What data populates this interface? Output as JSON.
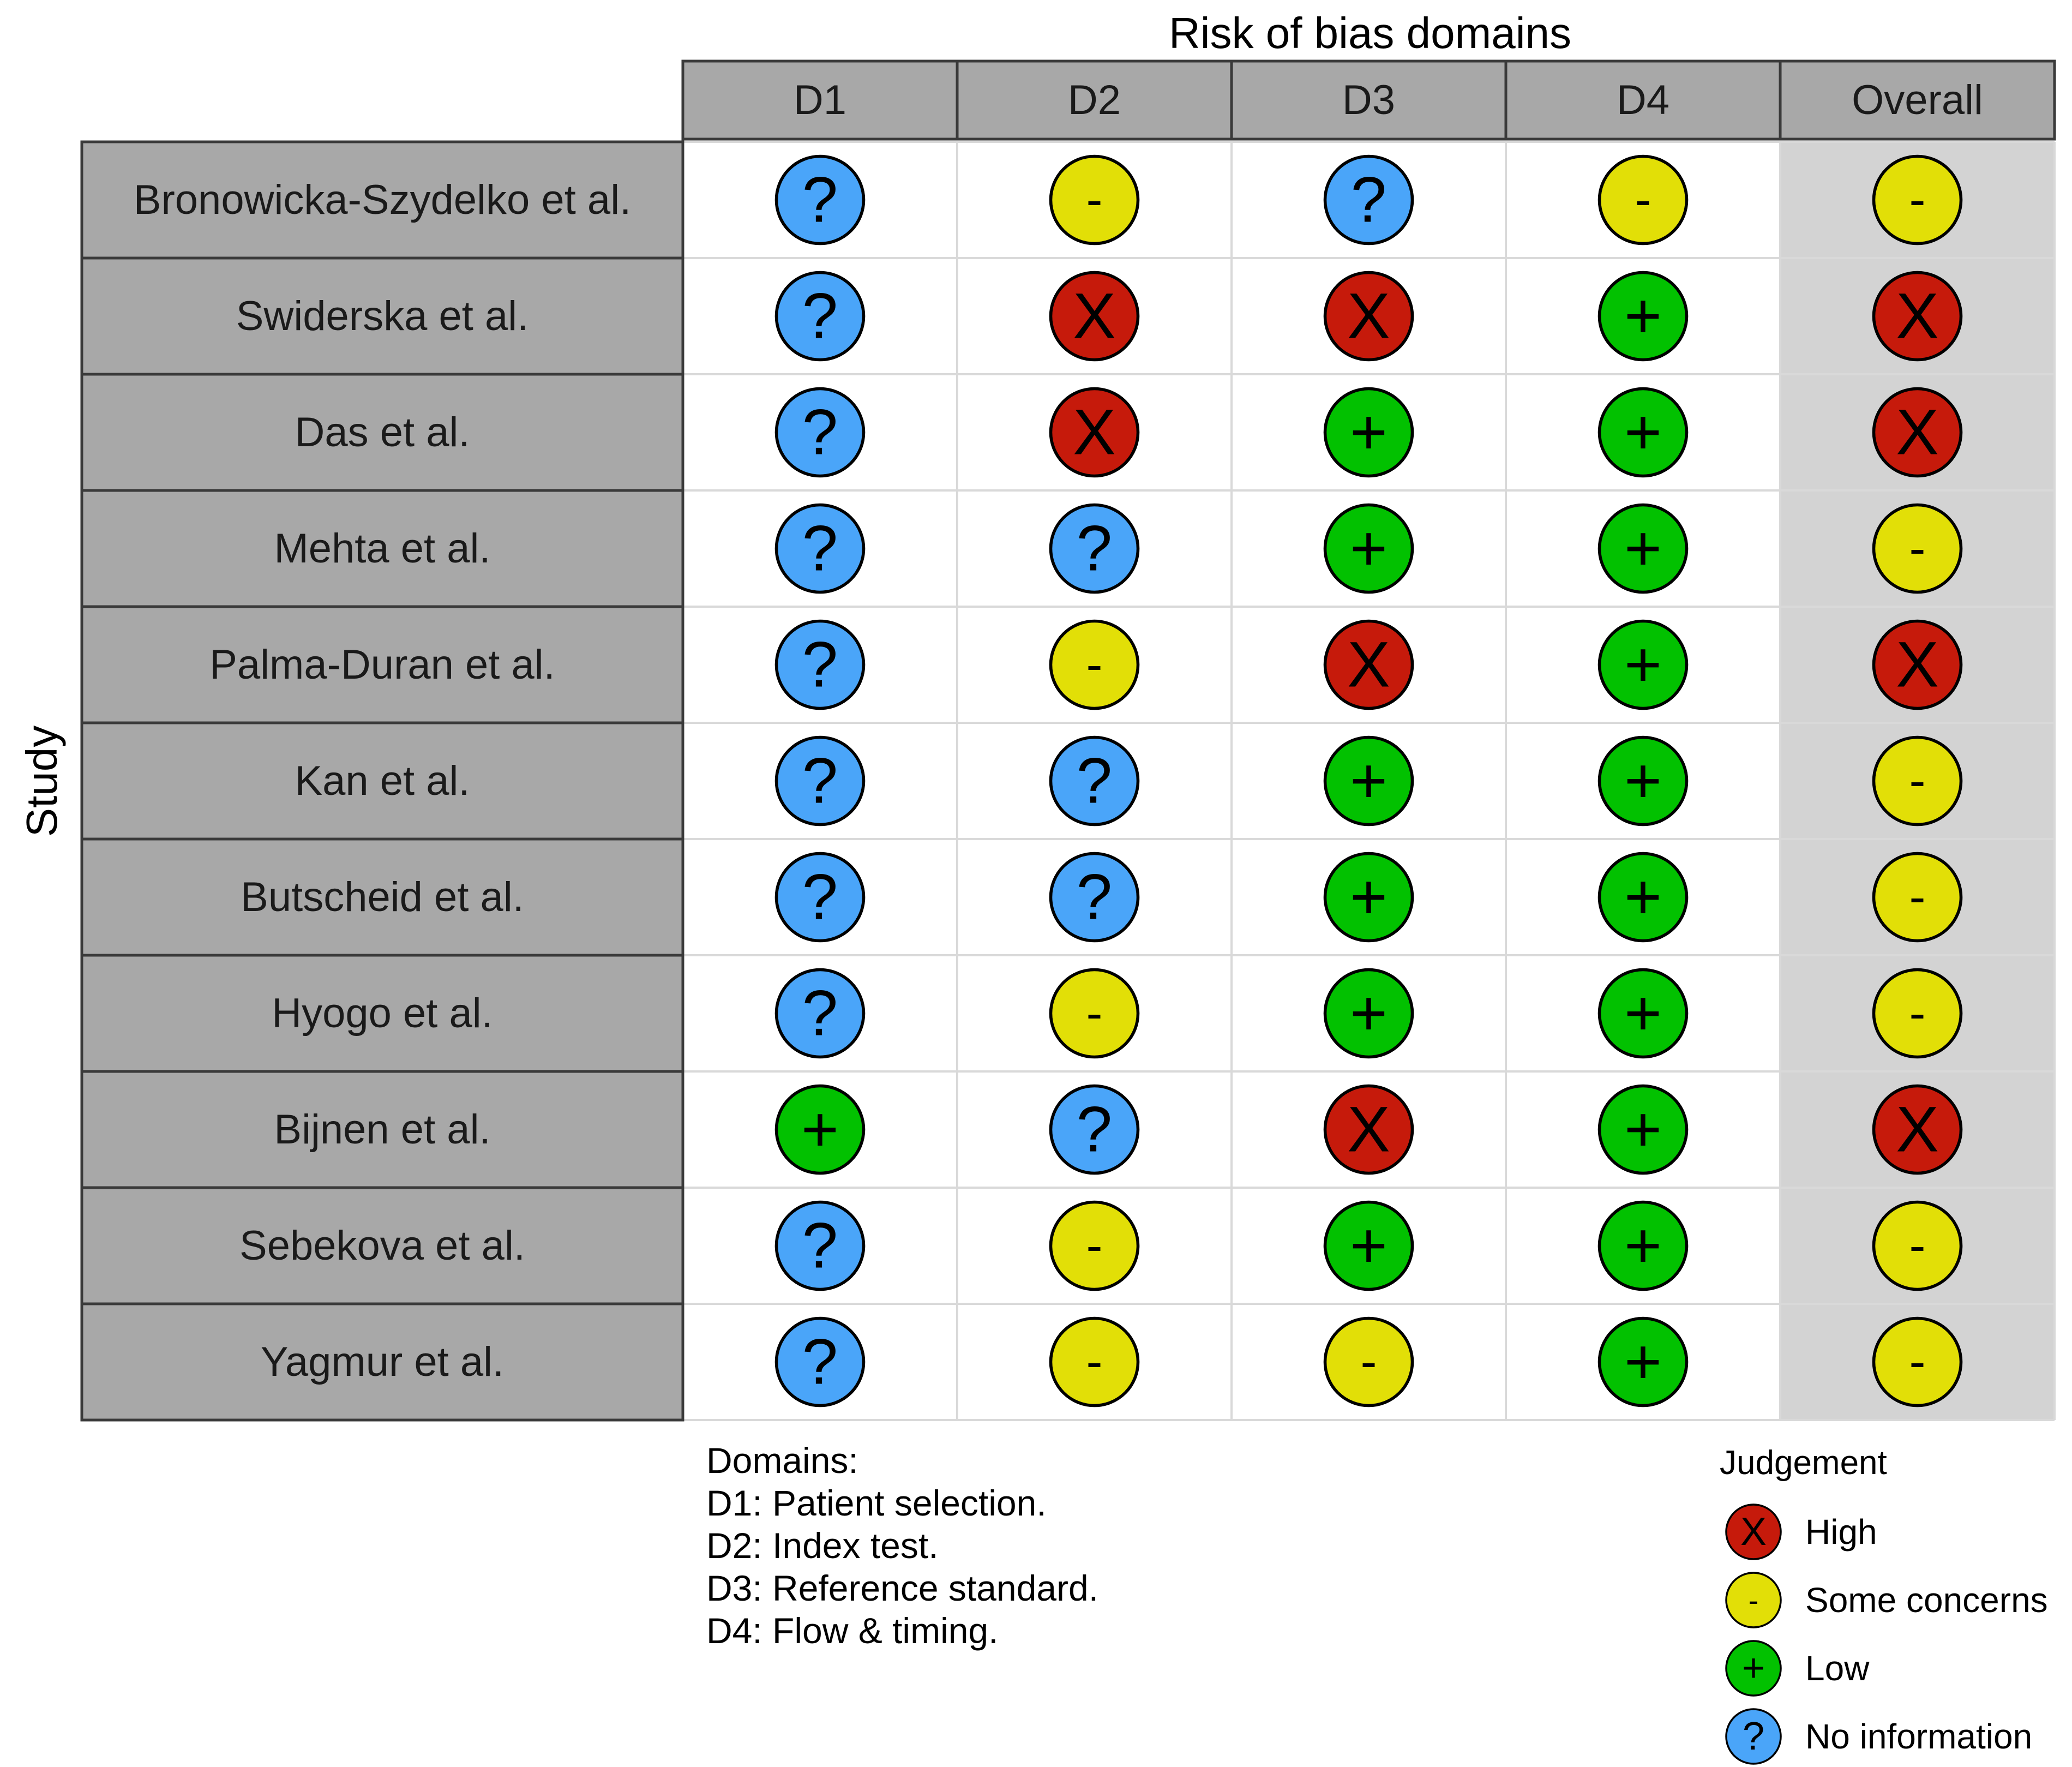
{
  "chart_data": {
    "type": "table",
    "title": "Risk of bias domains",
    "ylabel": "Study",
    "columns": [
      "D1",
      "D2",
      "D3",
      "D4",
      "Overall"
    ],
    "studies": [
      "Bronowicka-Szydelko et al.",
      "Swiderska et al.",
      "Das et al.",
      "Mehta et al.",
      "Palma-Duran et al.",
      "Kan et al.",
      "Butscheid et al.",
      "Hyogo et al.",
      "Bijnen et al.",
      "Sebekova et al.",
      "Yagmur et al."
    ],
    "judgements": [
      [
        "noinfo",
        "some",
        "noinfo",
        "some",
        "some"
      ],
      [
        "noinfo",
        "high",
        "high",
        "low",
        "high"
      ],
      [
        "noinfo",
        "high",
        "low",
        "low",
        "high"
      ],
      [
        "noinfo",
        "noinfo",
        "low",
        "low",
        "some"
      ],
      [
        "noinfo",
        "some",
        "high",
        "low",
        "high"
      ],
      [
        "noinfo",
        "noinfo",
        "low",
        "low",
        "some"
      ],
      [
        "noinfo",
        "noinfo",
        "low",
        "low",
        "some"
      ],
      [
        "noinfo",
        "some",
        "low",
        "low",
        "some"
      ],
      [
        "low",
        "noinfo",
        "high",
        "low",
        "high"
      ],
      [
        "noinfo",
        "some",
        "low",
        "low",
        "some"
      ],
      [
        "noinfo",
        "some",
        "some",
        "low",
        "some"
      ]
    ],
    "domains_heading": "Domains:",
    "domains": [
      "D1: Patient selection.",
      "D2: Index test.",
      "D3: Reference standard.",
      "D4: Flow & timing."
    ],
    "legend": {
      "title": "Judgement",
      "placement": "bottom-right",
      "items": [
        {
          "key": "high",
          "label": "High"
        },
        {
          "key": "some",
          "label": "Some concerns"
        },
        {
          "key": "low",
          "label": "Low"
        },
        {
          "key": "noinfo",
          "label": "No information"
        }
      ]
    },
    "symbols": {
      "high": "X",
      "some": "-",
      "low": "+",
      "noinfo": "?"
    },
    "colors": {
      "high": "#c61a0b",
      "some": "#e2df07",
      "low": "#02c100",
      "noinfo": "#4aa5f9",
      "header_fill": "#a8a8a8",
      "overall_fill": "#d3d3d3",
      "grid_line": "#d9d9d9"
    }
  }
}
